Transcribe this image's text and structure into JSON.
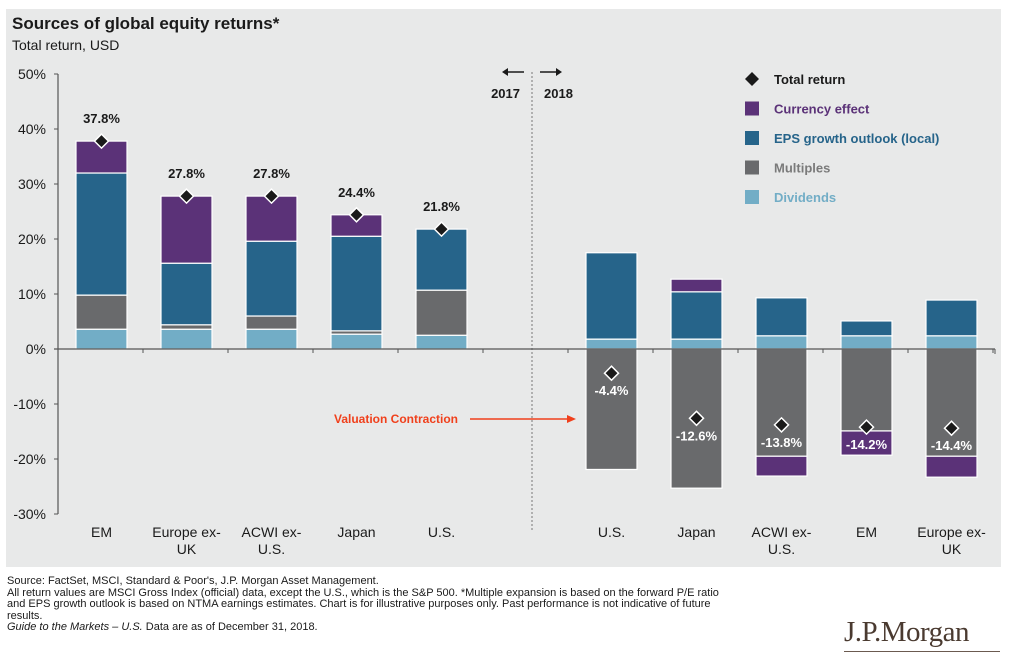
{
  "chart_data": {
    "type": "bar",
    "subtype": "stacked",
    "title": "Sources of global equity returns*",
    "subtitle": "Total return, USD",
    "xlabel": "",
    "ylabel": "",
    "ylim": [
      -30,
      50
    ],
    "yticks": [
      50,
      40,
      30,
      20,
      10,
      0,
      -10,
      -20,
      -30
    ],
    "ytick_labels": [
      "50%",
      "40%",
      "30%",
      "20%",
      "10%",
      "0%",
      "-10%",
      "-20%",
      "-30%"
    ],
    "period_labels": {
      "left": "2017",
      "right": "2018"
    },
    "legend_position": "top-right",
    "legend": [
      {
        "name": "Total return",
        "marker": "diamond",
        "color": "#1a1a1a"
      },
      {
        "name": "Currency effect",
        "marker": "square",
        "color": "#5b3278"
      },
      {
        "name": "EPS growth outlook (local)",
        "marker": "square",
        "color": "#26648a"
      },
      {
        "name": "Multiples",
        "marker": "square",
        "color": "#696a6c"
      },
      {
        "name": "Dividends",
        "marker": "square",
        "color": "#72adc6"
      }
    ],
    "colors": {
      "currency": "#5b3278",
      "eps": "#26648a",
      "multiples": "#696a6c",
      "dividends": "#72adc6",
      "total": "#1a1a1a",
      "annotation": "#f0401c"
    },
    "groups": [
      {
        "period": "2017",
        "categories": [
          "EM",
          "Europe ex-UK",
          "ACWI ex-U.S.",
          "Japan",
          "U.S."
        ],
        "category_lines": [
          [
            "EM"
          ],
          [
            "Europe ex-",
            "UK"
          ],
          [
            "ACWI ex-",
            "U.S."
          ],
          [
            "Japan"
          ],
          [
            "U.S."
          ]
        ],
        "series": [
          {
            "name": "Dividends",
            "values": [
              3.6,
              3.6,
              3.6,
              2.7,
              2.5
            ]
          },
          {
            "name": "Multiples",
            "values": [
              6.2,
              0.8,
              2.4,
              0.6,
              8.2
            ]
          },
          {
            "name": "EPS growth outlook (local)",
            "values": [
              22.2,
              11.2,
              13.6,
              17.2,
              11.1
            ]
          },
          {
            "name": "Currency effect",
            "values": [
              5.8,
              12.2,
              8.2,
              3.9,
              0.0
            ]
          }
        ],
        "total_return": [
          37.8,
          27.8,
          27.8,
          24.4,
          21.8
        ],
        "total_labels": [
          "37.8%",
          "27.8%",
          "27.8%",
          "24.4%",
          "21.8%"
        ]
      },
      {
        "period": "2018",
        "categories": [
          "U.S.",
          "Japan",
          "ACWI ex-U.S.",
          "EM",
          "Europe ex-UK"
        ],
        "category_lines": [
          [
            "U.S."
          ],
          [
            "Japan"
          ],
          [
            "ACWI ex-",
            "U.S."
          ],
          [
            "EM"
          ],
          [
            "Europe ex-",
            "UK"
          ]
        ],
        "series": [
          {
            "name": "Dividends",
            "values": [
              1.8,
              1.8,
              2.4,
              2.4,
              2.4
            ]
          },
          {
            "name": "Multiples",
            "values": [
              -21.9,
              -25.3,
              -19.5,
              -14.9,
              -19.5
            ]
          },
          {
            "name": "EPS growth outlook (local)",
            "values": [
              15.7,
              8.6,
              6.9,
              2.7,
              6.5
            ]
          },
          {
            "name": "Currency effect",
            "values": [
              0.0,
              2.3,
              -3.6,
              -4.4,
              -3.8
            ]
          }
        ],
        "total_return": [
          -4.4,
          -12.6,
          -13.8,
          -14.2,
          -14.4
        ],
        "total_labels": [
          "-4.4%",
          "-12.6%",
          "-13.8%",
          "-14.2%",
          "-14.4%"
        ]
      }
    ],
    "annotations": [
      {
        "text": "Valuation Contraction",
        "points_to": "2018 U.S. Multiples",
        "y_value": -12
      }
    ]
  },
  "footnote": {
    "lines": [
      "Source: FactSet, MSCI, Standard & Poor's, J.P. Morgan Asset Management.",
      "All return values are MSCI Gross Index (official) data, except the U.S., which is the S&P 500. *Multiple expansion is based on the forward P/E ratio",
      "and EPS growth outlook is based on NTMA earnings estimates. Chart is for illustrative purposes only. Past performance is not indicative of future",
      "results."
    ],
    "guide_italic": "Guide to the Markets – U.S.",
    "guide_rest": " Data are as of December 31, 2018."
  },
  "logo": "J.P.Morgan"
}
